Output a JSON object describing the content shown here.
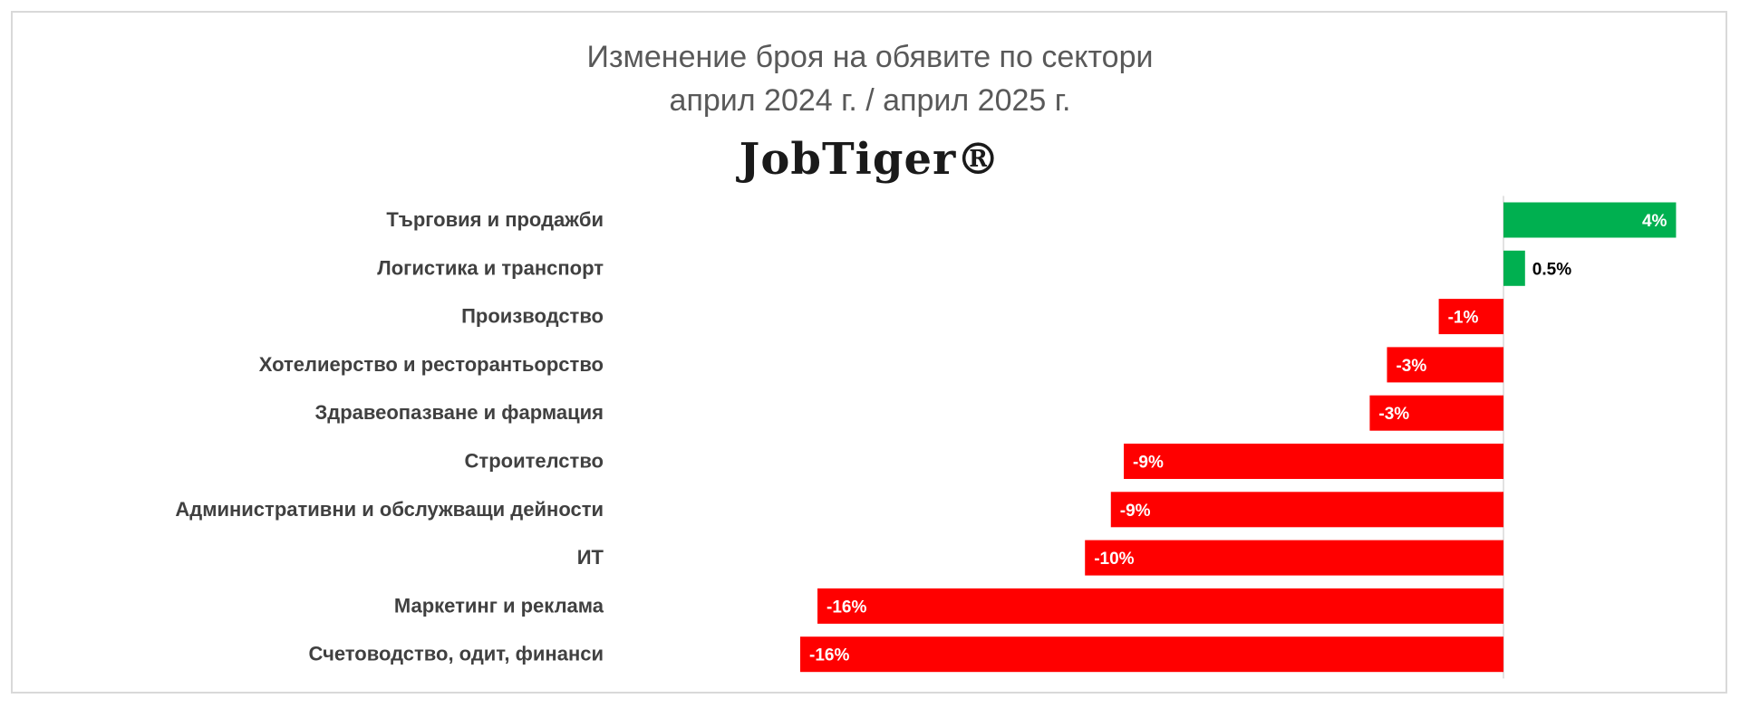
{
  "chart_data": {
    "type": "bar",
    "orientation": "horizontal",
    "title": "Изменение броя на обявите по сектори",
    "subtitle": "април 2024 г. / април 2025 г.",
    "logo_text": "JobTiger®",
    "categories": [
      "Търговия и продажби",
      "Логистика и транспорт",
      "Производство",
      "Хотелиерство и ресторантьорство",
      "Здравеопазване и фармация",
      "Строителство",
      "Административни и обслужващи дейности",
      "ИТ",
      "Маркетинг и реклама",
      "Счетоводство, одит, финанси"
    ],
    "values": [
      4.0,
      0.5,
      -1.5,
      -2.7,
      -3.1,
      -8.8,
      -9.1,
      -9.7,
      -15.9,
      -16.3
    ],
    "data_labels": [
      "4%",
      "0.5%",
      "-1%",
      "-3%",
      "-3%",
      "-9%",
      "-9%",
      "-10%",
      "-16%",
      "-16%"
    ],
    "xlim": [
      -16.3,
      4.0
    ],
    "grid": false,
    "legend": "none",
    "colors": {
      "positive": "#00b050",
      "negative": "#ff0000",
      "axis": "#d9d9d9",
      "category_text": "#404040",
      "title_text": "#595959"
    }
  }
}
